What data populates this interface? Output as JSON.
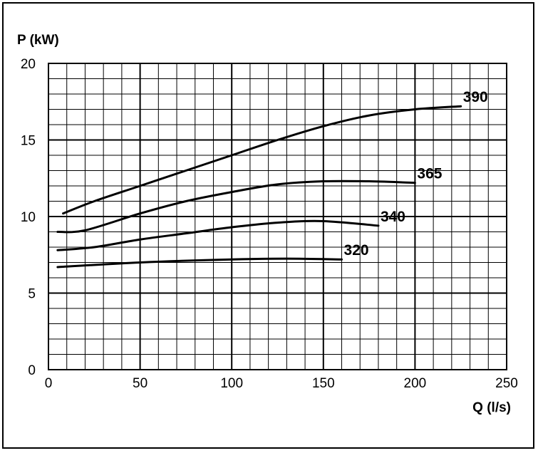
{
  "chart_data": {
    "type": "line",
    "xlabel": "Q (l/s)",
    "ylabel": "P (kW)",
    "xlim": [
      0,
      250
    ],
    "ylim": [
      0,
      20
    ],
    "x_ticks": [
      "0",
      "50",
      "100",
      "150",
      "200",
      "250"
    ],
    "y_ticks": [
      "0",
      "5",
      "10",
      "15",
      "20"
    ],
    "grid": true,
    "grid_minor_x": 10,
    "grid_minor_y": 1,
    "series": [
      {
        "name": "390",
        "x": [
          8,
          25,
          50,
          75,
          100,
          125,
          150,
          175,
          200,
          225
        ],
        "y": [
          10.2,
          11.0,
          12.0,
          13.0,
          14.0,
          15.0,
          15.9,
          16.6,
          17.0,
          17.2
        ]
      },
      {
        "name": "365",
        "x": [
          5,
          20,
          50,
          75,
          100,
          125,
          150,
          175,
          200
        ],
        "y": [
          9.0,
          9.1,
          10.2,
          11.0,
          11.6,
          12.1,
          12.3,
          12.3,
          12.2
        ]
      },
      {
        "name": "340",
        "x": [
          5,
          25,
          50,
          75,
          100,
          125,
          150,
          180
        ],
        "y": [
          7.8,
          8.0,
          8.5,
          8.9,
          9.3,
          9.6,
          9.7,
          9.4
        ]
      },
      {
        "name": "320",
        "x": [
          5,
          50,
          100,
          130,
          160
        ],
        "y": [
          6.7,
          7.0,
          7.2,
          7.25,
          7.2
        ]
      }
    ]
  }
}
